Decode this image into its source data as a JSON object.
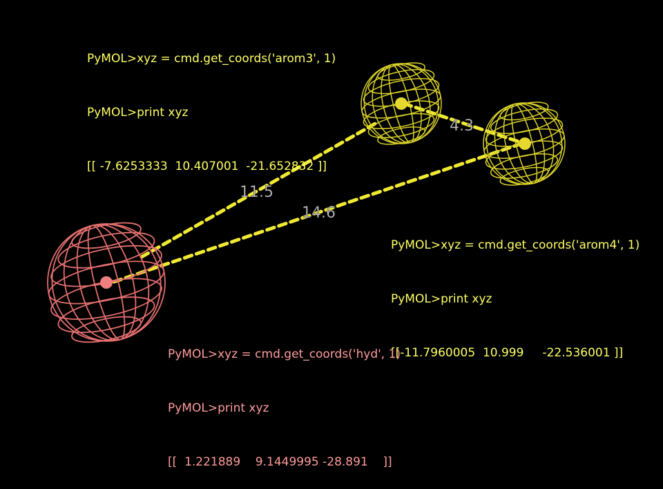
{
  "colors": {
    "background": "#000000",
    "aromatic_sphere": "#d9d12a",
    "aromatic_center": "#e6d82e",
    "hydrophobic_sphere": "#e46f6f",
    "hydrophobic_center": "#f08080",
    "distance_dash": "#f0ea33",
    "distance_label": "#c8c8c8",
    "console_aromatic_text": "#ffff66",
    "console_hydrophobic_text": "#ff9c9c"
  },
  "consoles": {
    "arom3": {
      "lines": [
        "PyMOL>xyz = cmd.get_coords('arom3', 1)",
        "PyMOL>print xyz",
        "[[ -7.6253333  10.407001  -21.652832 ]]"
      ]
    },
    "arom4": {
      "lines": [
        "PyMOL>xyz = cmd.get_coords('arom4', 1)",
        "PyMOL>print xyz",
        "[[-11.7960005  10.999     -22.536001 ]]"
      ]
    },
    "hyd": {
      "lines": [
        "PyMOL>xyz = cmd.get_coords('hyd', 1)",
        "PyMOL>print xyz",
        "[[  1.221889    9.1449995 -28.891    ]]"
      ]
    }
  },
  "distances": {
    "arom3_arom4": "4.3",
    "hyd_arom3": "11.5",
    "hyd_arom4": "14.6"
  },
  "icons": {
    "arom3": "wire-sphere-icon",
    "arom4": "wire-sphere-icon",
    "hyd": "wire-sphere-icon"
  }
}
